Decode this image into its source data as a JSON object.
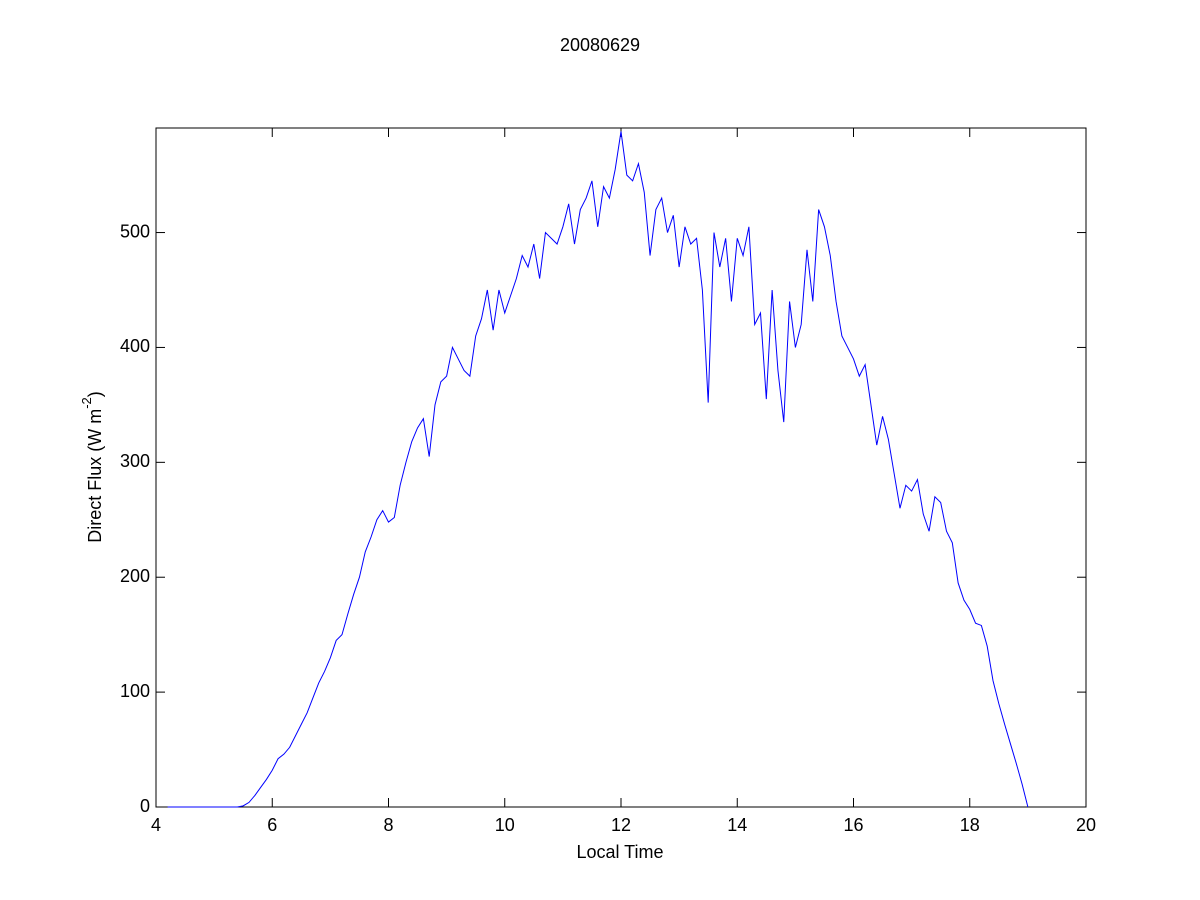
{
  "chart_data": {
    "type": "line",
    "title": "20080629",
    "x_label": "Local Time",
    "y_label": [
      "Direct Flux (W m",
      "-2",
      ")"
    ],
    "color": "#0000ff",
    "xlim": [
      4,
      20
    ],
    "xticks": [
      4,
      6,
      8,
      10,
      12,
      14,
      16,
      18,
      20
    ],
    "ylim": [
      0,
      591
    ],
    "yticks": [
      0,
      100,
      200,
      300,
      400,
      500
    ],
    "x": [
      4.2,
      4.3,
      4.4,
      4.5,
      4.6,
      4.7,
      4.8,
      4.9,
      5.0,
      5.1,
      5.2,
      5.3,
      5.4,
      5.5,
      5.6,
      5.7,
      5.8,
      5.9,
      6.0,
      6.1,
      6.2,
      6.3,
      6.4,
      6.5,
      6.6,
      6.7,
      6.8,
      6.9,
      7.0,
      7.1,
      7.2,
      7.3,
      7.4,
      7.5,
      7.6,
      7.7,
      7.8,
      7.9,
      8.0,
      8.1,
      8.2,
      8.3,
      8.4,
      8.5,
      8.6,
      8.7,
      8.8,
      8.9,
      9.0,
      9.1,
      9.2,
      9.3,
      9.4,
      9.5,
      9.6,
      9.7,
      9.8,
      9.9,
      10.0,
      10.1,
      10.2,
      10.3,
      10.4,
      10.5,
      10.6,
      10.7,
      10.8,
      10.9,
      11.0,
      11.1,
      11.2,
      11.3,
      11.4,
      11.5,
      11.6,
      11.7,
      11.8,
      11.9,
      12.0,
      12.1,
      12.2,
      12.3,
      12.4,
      12.5,
      12.6,
      12.7,
      12.8,
      12.9,
      13.0,
      13.1,
      13.2,
      13.3,
      13.4,
      13.5,
      13.6,
      13.7,
      13.8,
      13.9,
      14.0,
      14.1,
      14.2,
      14.3,
      14.4,
      14.5,
      14.6,
      14.7,
      14.8,
      14.9,
      15.0,
      15.1,
      15.2,
      15.3,
      15.4,
      15.5,
      15.6,
      15.7,
      15.8,
      15.9,
      16.0,
      16.1,
      16.2,
      16.3,
      16.4,
      16.5,
      16.6,
      16.7,
      16.8,
      16.9,
      17.0,
      17.1,
      17.2,
      17.3,
      17.4,
      17.5,
      17.6,
      17.7,
      17.8,
      17.9,
      18.0,
      18.1,
      18.2,
      18.3,
      18.4,
      18.5,
      18.6,
      18.7,
      18.8,
      18.9,
      19.0
    ],
    "values": [
      0,
      0,
      0,
      0,
      0,
      0,
      0,
      0,
      0,
      0,
      0,
      0,
      0,
      1,
      4,
      10,
      17,
      24,
      32,
      42,
      46,
      52,
      62,
      72,
      82,
      95,
      108,
      118,
      130,
      145,
      150,
      168,
      185,
      200,
      222,
      235,
      250,
      258,
      248,
      252,
      280,
      300,
      318,
      330,
      338,
      305,
      350,
      370,
      375,
      400,
      390,
      380,
      375,
      410,
      425,
      450,
      415,
      450,
      430,
      445,
      460,
      480,
      470,
      490,
      460,
      500,
      495,
      490,
      505,
      525,
      490,
      520,
      530,
      545,
      505,
      540,
      530,
      555,
      588,
      550,
      545,
      560,
      535,
      480,
      520,
      530,
      500,
      515,
      470,
      505,
      490,
      495,
      450,
      352,
      500,
      470,
      495,
      440,
      495,
      480,
      505,
      420,
      430,
      355,
      450,
      380,
      335,
      440,
      400,
      420,
      485,
      440,
      520,
      505,
      480,
      440,
      410,
      400,
      390,
      375,
      385,
      350,
      315,
      340,
      320,
      290,
      260,
      280,
      275,
      285,
      255,
      240,
      270,
      265,
      240,
      230,
      195,
      180,
      172,
      160,
      158,
      140,
      110,
      90,
      72,
      55,
      38,
      20,
      0
    ]
  }
}
